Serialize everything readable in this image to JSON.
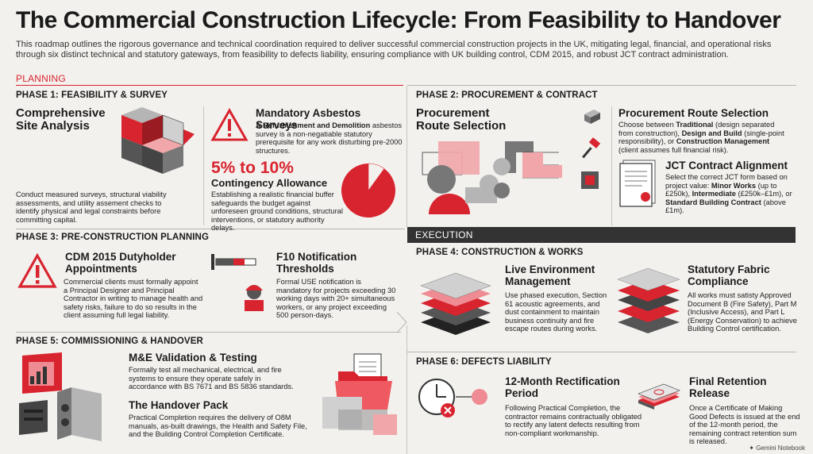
{
  "page": {
    "title": "The Commercial Construction Lifecycle: From Feasibility to Handover",
    "intro": "This roadmap outlines the rigorous governance and technical coordination required to deliver successful commercial construction projects in the UK, mitigating legal, financial, and operational risks through six distinct technical and statutory gateways, from feasibility to defects liability, ensuring compliance with UK building control, CDM 2015, and robust JCT contract administration."
  },
  "sections": {
    "planning": "PLANNING",
    "execution": "EXECUTION"
  },
  "phase1": {
    "heading": "PHASE 1: FEASIBILITY & SURVEY",
    "site_title": "Comprehensive Site Analysis",
    "site_text": "Conduct measured surveys, structural viability assessments, and utility assement checks to identify physical and legal constraints before committing capital.",
    "asbestos_title": "Mandatory Asbestos Surveys",
    "asbestos_text_bold": "A Refurbishment and Demolition",
    "asbestos_text": "asbestos survey is a non-negatiable statutory prerequisite for any work disturbing pre-2000 structures.",
    "contingency_pct": "5% to 10%",
    "contingency_title": "Contingency Allowance",
    "contingency_text": "Establishing a realistic financial buffer safeguards the budget against unforeseen ground conditions, structural interventions, or statutory authority delays."
  },
  "phase2": {
    "heading": "PHASE 2: PROCUREMENT & CONTRACT",
    "left_title": "Procurement Route Selection",
    "route_title": "Procurement Route Selection",
    "route_p1": "Choose between ",
    "route_b1": "Traditional",
    "route_p2": " (design separated from construction), ",
    "route_b2": "Design and Build",
    "route_p3": " (single-point responsibility), or ",
    "route_b3": "Construction Management",
    "route_p4": " (client assumes full financial risk).",
    "jct_title": "JCT Contract Alignment",
    "jct_p1": "Select the correct JCT form based on project value: ",
    "jct_b1": "Minor Works",
    "jct_p2": " (up to £250k), ",
    "jct_b2": "Intermediate",
    "jct_p3": " (£250k–£1m), or ",
    "jct_b3": "Standard Building Contract",
    "jct_p4": " (above £1m)."
  },
  "phase3": {
    "heading": "PHASE 3: PRE-CONSTRUCTION PLANNING",
    "cdm_title": "CDM 2015 Dutyholder Appointments",
    "cdm_text": "Commercial clients must formally appoint a Principal Designer and Principal Contractor in writing to manage health and safety risks, failure to do so results in the client assuming full legal liability.",
    "f10_title": "F10 Notification Thresholds",
    "f10_text": "Formal USE notification is mandatory for projects exceeding 30 working days with 20+ simultaneous workers, or any project exceeding 500 person-days."
  },
  "phase4": {
    "heading": "PHASE 4: CONSTRUCTION & WORKS",
    "live_title": "Live Environment Management",
    "live_text": "Use phased execution, Section 61 acoustic agreements, and dust containment to maintain business continuity and fire escape routes during works.",
    "fabric_title": "Statutory Fabric Compliance",
    "fabric_text": "All works must satisty Approved Document B (Fire Safety), Part M (Inclusive Access), and Part L (Energy Conservation) to achieve Building Control certification."
  },
  "phase5": {
    "heading": "PHASE 5: COMMISSIONING & HANDOVER",
    "me_title": "M&E Validation & Testing",
    "me_text": "Formally test all mechanical, electrical, and fire systems to ensure they operate safely in accordance with BS 7671 and BS 5836 standards.",
    "pack_title": "The Handover Pack",
    "pack_text": "Practical Completion requires the delivery of O8M manuals, as-built drawings, the Health and Safety File, and the Building Control Completion Certificate."
  },
  "phase6": {
    "heading": "PHASE 6: DEFECTS LIABILITY",
    "rect_title": "12-Month Rectification Period",
    "rect_text": "Following Practical Completion, the contractor remains contractually obligated to rectify any latent defects resulting from non-compliant workmanship.",
    "ret_title": "Final Retention Release",
    "ret_text": "Once a Certificate of Making Good Defects is issued at the end of the 12-month period, the remaining contract retention sum is released."
  },
  "footer": {
    "brand": "Gemini Notebook"
  },
  "colors": {
    "red": "#d8242f",
    "dark": "#333333",
    "grey": "#8f8f8f",
    "light": "#c8c8c8",
    "bg": "#f3f1ee"
  },
  "icons": [
    "cube-icon",
    "warning-icon",
    "pie-icon",
    "flow-icon",
    "hammer-icon",
    "contract-icon",
    "progress-icon",
    "worker-icon",
    "layers-icon",
    "monitor-icon",
    "folder-icon",
    "clock-icon",
    "cash-icon",
    "gemini-icon"
  ],
  "chart_data": {
    "type": "pie",
    "values": [
      10,
      90
    ],
    "categories": [
      "",
      ""
    ]
  }
}
